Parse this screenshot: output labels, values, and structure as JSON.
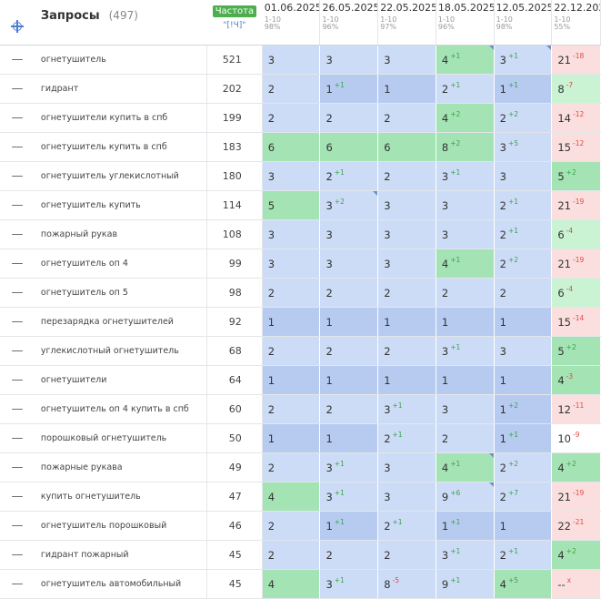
{
  "header": {
    "title": "Запросы",
    "count": "(497)",
    "freq_badge": "Частота",
    "freq_sub": "\"[!Ч]\"",
    "dates": [
      {
        "date": "01.06.2025",
        "range": "1-10",
        "pct": "98%"
      },
      {
        "date": "26.05.2025",
        "range": "1-10",
        "pct": "96%"
      },
      {
        "date": "22.05.2025",
        "range": "1-10",
        "pct": "97%"
      },
      {
        "date": "18.05.2025",
        "range": "1-10",
        "pct": "96%"
      },
      {
        "date": "12.05.2025",
        "range": "1-10",
        "pct": "98%"
      },
      {
        "date": "22.12.2024",
        "range": "1-10",
        "pct": "55%"
      }
    ]
  },
  "colors": {
    "accent": "#4a7fd0",
    "badge": "#4cae4c",
    "up": "#3aa24a",
    "down": "#e04848"
  },
  "rows": [
    {
      "query": "огнетушитель",
      "freq": "521",
      "cells": [
        [
          "3",
          "",
          ""
        ],
        [
          "3",
          "",
          ""
        ],
        [
          "3",
          "",
          ""
        ],
        [
          "4",
          "+1",
          "up"
        ],
        [
          "3",
          "+1",
          "up"
        ],
        [
          "21",
          "-18",
          "dn"
        ]
      ],
      "bg": [
        "lb",
        "lb",
        "lb",
        "gr",
        "lb",
        "pk"
      ],
      "marks": [
        0,
        0,
        0,
        1,
        1,
        0
      ]
    },
    {
      "query": "гидрант",
      "freq": "202",
      "cells": [
        [
          "2",
          "",
          ""
        ],
        [
          "1",
          "+1",
          "up"
        ],
        [
          "1",
          "",
          ""
        ],
        [
          "2",
          "+1",
          "up"
        ],
        [
          "1",
          "+1",
          "up"
        ],
        [
          "8",
          "-7",
          "dn"
        ]
      ],
      "bg": [
        "lb",
        "mb",
        "mb",
        "lb",
        "mb",
        "lg"
      ],
      "marks": [
        0,
        0,
        0,
        0,
        0,
        0
      ]
    },
    {
      "query": "огнетушители купить в спб",
      "freq": "199",
      "cells": [
        [
          "2",
          "",
          ""
        ],
        [
          "2",
          "",
          ""
        ],
        [
          "2",
          "",
          ""
        ],
        [
          "4",
          "+2",
          "up"
        ],
        [
          "2",
          "+2",
          "up"
        ],
        [
          "14",
          "-12",
          "dn"
        ]
      ],
      "bg": [
        "lb",
        "lb",
        "lb",
        "gr",
        "lb",
        "pk"
      ],
      "marks": [
        0,
        0,
        0,
        0,
        0,
        0
      ]
    },
    {
      "query": "огнетушитель купить в спб",
      "freq": "183",
      "cells": [
        [
          "6",
          "",
          ""
        ],
        [
          "6",
          "",
          ""
        ],
        [
          "6",
          "",
          ""
        ],
        [
          "8",
          "+2",
          "up"
        ],
        [
          "3",
          "+5",
          "up"
        ],
        [
          "15",
          "-12",
          "dn"
        ]
      ],
      "bg": [
        "gr",
        "gr",
        "gr",
        "gr",
        "lb",
        "pk"
      ],
      "marks": [
        0,
        0,
        0,
        0,
        0,
        0
      ]
    },
    {
      "query": "огнетушитель углекислотный",
      "freq": "180",
      "cells": [
        [
          "3",
          "",
          ""
        ],
        [
          "2",
          "+1",
          "up"
        ],
        [
          "2",
          "",
          ""
        ],
        [
          "3",
          "+1",
          "up"
        ],
        [
          "3",
          "",
          ""
        ],
        [
          "5",
          "+2",
          "up"
        ]
      ],
      "bg": [
        "lb",
        "lb",
        "lb",
        "lb",
        "lb",
        "gr"
      ],
      "marks": [
        0,
        0,
        0,
        0,
        0,
        0
      ]
    },
    {
      "query": "огнетушитель купить",
      "freq": "114",
      "cells": [
        [
          "5",
          "",
          ""
        ],
        [
          "3",
          "+2",
          "up"
        ],
        [
          "3",
          "",
          ""
        ],
        [
          "3",
          "",
          ""
        ],
        [
          "2",
          "+1",
          "up"
        ],
        [
          "21",
          "-19",
          "dn"
        ]
      ],
      "bg": [
        "gr",
        "lb",
        "lb",
        "lb",
        "lb",
        "pk"
      ],
      "marks": [
        0,
        1,
        0,
        0,
        0,
        0
      ]
    },
    {
      "query": "пожарный рукав",
      "freq": "108",
      "cells": [
        [
          "3",
          "",
          ""
        ],
        [
          "3",
          "",
          ""
        ],
        [
          "3",
          "",
          ""
        ],
        [
          "3",
          "",
          ""
        ],
        [
          "2",
          "+1",
          "up"
        ],
        [
          "6",
          "-4",
          "dn"
        ]
      ],
      "bg": [
        "lb",
        "lb",
        "lb",
        "lb",
        "lb",
        "lg"
      ],
      "marks": [
        0,
        0,
        0,
        0,
        0,
        0
      ]
    },
    {
      "query": "огнетушитель оп 4",
      "freq": "99",
      "cells": [
        [
          "3",
          "",
          ""
        ],
        [
          "3",
          "",
          ""
        ],
        [
          "3",
          "",
          ""
        ],
        [
          "4",
          "+1",
          "up"
        ],
        [
          "2",
          "+2",
          "up"
        ],
        [
          "21",
          "-19",
          "dn"
        ]
      ],
      "bg": [
        "lb",
        "lb",
        "lb",
        "gr",
        "lb",
        "pk"
      ],
      "marks": [
        0,
        0,
        0,
        0,
        0,
        0
      ]
    },
    {
      "query": "огнетушитель оп 5",
      "freq": "98",
      "cells": [
        [
          "2",
          "",
          ""
        ],
        [
          "2",
          "",
          ""
        ],
        [
          "2",
          "",
          ""
        ],
        [
          "2",
          "",
          ""
        ],
        [
          "2",
          "",
          ""
        ],
        [
          "6",
          "-4",
          "dn"
        ]
      ],
      "bg": [
        "lb",
        "lb",
        "lb",
        "lb",
        "lb",
        "lg"
      ],
      "marks": [
        0,
        0,
        0,
        0,
        0,
        0
      ]
    },
    {
      "query": "перезарядка огнетушителей",
      "freq": "92",
      "cells": [
        [
          "1",
          "",
          ""
        ],
        [
          "1",
          "",
          ""
        ],
        [
          "1",
          "",
          ""
        ],
        [
          "1",
          "",
          ""
        ],
        [
          "1",
          "",
          ""
        ],
        [
          "15",
          "-14",
          "dn"
        ]
      ],
      "bg": [
        "mb",
        "mb",
        "mb",
        "mb",
        "mb",
        "pk"
      ],
      "marks": [
        0,
        0,
        0,
        0,
        0,
        0
      ]
    },
    {
      "query": "углекислотный огнетушитель",
      "freq": "68",
      "cells": [
        [
          "2",
          "",
          ""
        ],
        [
          "2",
          "",
          ""
        ],
        [
          "2",
          "",
          ""
        ],
        [
          "3",
          "+1",
          "up"
        ],
        [
          "3",
          "",
          ""
        ],
        [
          "5",
          "+2",
          "up"
        ]
      ],
      "bg": [
        "lb",
        "lb",
        "lb",
        "lb",
        "lb",
        "gr"
      ],
      "marks": [
        0,
        0,
        0,
        0,
        0,
        0
      ]
    },
    {
      "query": "огнетушители",
      "freq": "64",
      "cells": [
        [
          "1",
          "",
          ""
        ],
        [
          "1",
          "",
          ""
        ],
        [
          "1",
          "",
          ""
        ],
        [
          "1",
          "",
          ""
        ],
        [
          "1",
          "",
          ""
        ],
        [
          "4",
          "-3",
          "dn"
        ]
      ],
      "bg": [
        "mb",
        "mb",
        "mb",
        "mb",
        "mb",
        "gr"
      ],
      "marks": [
        0,
        0,
        0,
        0,
        0,
        0
      ]
    },
    {
      "query": "огнетушитель оп 4 купить в спб",
      "freq": "60",
      "cells": [
        [
          "2",
          "",
          ""
        ],
        [
          "2",
          "",
          ""
        ],
        [
          "3",
          "+1",
          "up"
        ],
        [
          "3",
          "",
          ""
        ],
        [
          "1",
          "+2",
          "up"
        ],
        [
          "12",
          "-11",
          "dn"
        ]
      ],
      "bg": [
        "lb",
        "lb",
        "lb",
        "lb",
        "mb",
        "pk"
      ],
      "marks": [
        0,
        0,
        0,
        0,
        0,
        0
      ]
    },
    {
      "query": "порошковый огнетушитель",
      "freq": "50",
      "cells": [
        [
          "1",
          "",
          ""
        ],
        [
          "1",
          "",
          ""
        ],
        [
          "2",
          "+1",
          "up"
        ],
        [
          "2",
          "",
          ""
        ],
        [
          "1",
          "+1",
          "up"
        ],
        [
          "10",
          "-9",
          "dn"
        ]
      ],
      "bg": [
        "mb",
        "mb",
        "lb",
        "lb",
        "mb",
        "wh"
      ],
      "marks": [
        0,
        0,
        0,
        0,
        0,
        0
      ]
    },
    {
      "query": "пожарные рукава",
      "freq": "49",
      "cells": [
        [
          "2",
          "",
          ""
        ],
        [
          "3",
          "+1",
          "up"
        ],
        [
          "3",
          "",
          ""
        ],
        [
          "4",
          "+1",
          "up"
        ],
        [
          "2",
          "+2",
          "up"
        ],
        [
          "4",
          "+2",
          "up"
        ]
      ],
      "bg": [
        "lb",
        "lb",
        "lb",
        "gr",
        "lb",
        "gr"
      ],
      "marks": [
        0,
        0,
        0,
        1,
        0,
        0
      ]
    },
    {
      "query": "купить огнетушитель",
      "freq": "47",
      "cells": [
        [
          "4",
          "",
          ""
        ],
        [
          "3",
          "+1",
          "up"
        ],
        [
          "3",
          "",
          ""
        ],
        [
          "9",
          "+6",
          "up"
        ],
        [
          "2",
          "+7",
          "up"
        ],
        [
          "21",
          "-19",
          "dn"
        ]
      ],
      "bg": [
        "gr",
        "lb",
        "lb",
        "lb",
        "lb",
        "pk"
      ],
      "marks": [
        0,
        0,
        0,
        1,
        0,
        0
      ]
    },
    {
      "query": "огнетушитель порошковый",
      "freq": "46",
      "cells": [
        [
          "2",
          "",
          ""
        ],
        [
          "1",
          "+1",
          "up"
        ],
        [
          "2",
          "+1",
          "up"
        ],
        [
          "1",
          "+1",
          "up"
        ],
        [
          "1",
          "",
          ""
        ],
        [
          "22",
          "-21",
          "dn"
        ]
      ],
      "bg": [
        "lb",
        "mb",
        "lb",
        "mb",
        "mb",
        "pk"
      ],
      "marks": [
        0,
        0,
        0,
        0,
        0,
        0
      ]
    },
    {
      "query": "гидрант пожарный",
      "freq": "45",
      "cells": [
        [
          "2",
          "",
          ""
        ],
        [
          "2",
          "",
          ""
        ],
        [
          "2",
          "",
          ""
        ],
        [
          "3",
          "+1",
          "up"
        ],
        [
          "2",
          "+1",
          "up"
        ],
        [
          "4",
          "+2",
          "up"
        ]
      ],
      "bg": [
        "lb",
        "lb",
        "lb",
        "lb",
        "lb",
        "gr"
      ],
      "marks": [
        0,
        0,
        0,
        0,
        0,
        0
      ]
    },
    {
      "query": "огнетушитель автомобильный",
      "freq": "45",
      "cells": [
        [
          "4",
          "",
          ""
        ],
        [
          "3",
          "+1",
          "up"
        ],
        [
          "8",
          "-5",
          "dn"
        ],
        [
          "9",
          "+1",
          "up"
        ],
        [
          "4",
          "+5",
          "up"
        ],
        [
          "--",
          "x",
          "x"
        ]
      ],
      "bg": [
        "gr",
        "lb",
        "lb",
        "lb",
        "gr",
        "pk"
      ],
      "marks": [
        0,
        0,
        0,
        0,
        0,
        0
      ]
    }
  ]
}
